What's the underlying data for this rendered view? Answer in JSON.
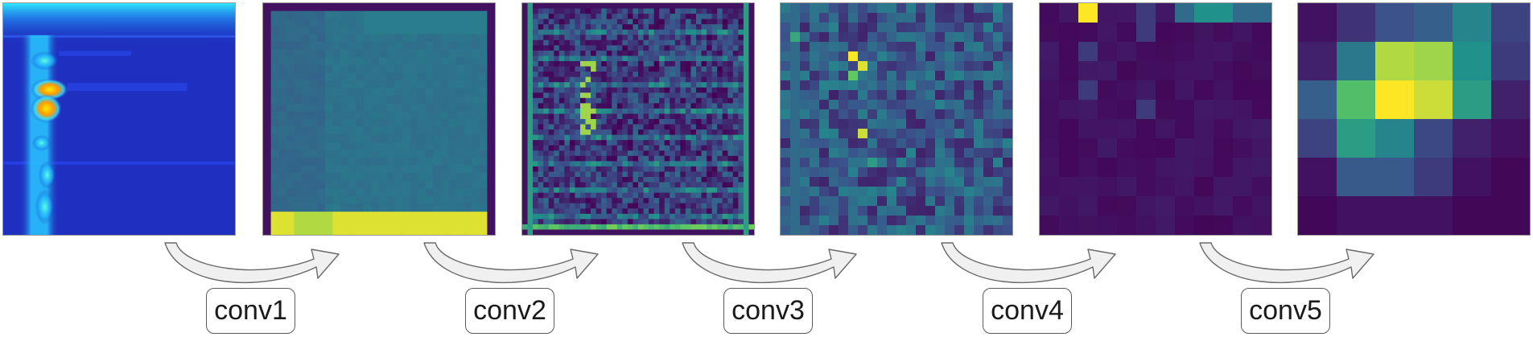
{
  "diagram": {
    "panels": [
      {
        "id": "input",
        "kind": "spectrogram"
      },
      {
        "id": "after-conv1",
        "kind": "feature-map",
        "grid": 30
      },
      {
        "id": "after-conv2",
        "kind": "feature-map",
        "grid": 44
      },
      {
        "id": "after-conv3",
        "kind": "feature-map",
        "grid": 24
      },
      {
        "id": "after-conv4",
        "kind": "feature-map",
        "grid": 12
      },
      {
        "id": "after-conv5",
        "kind": "feature-map",
        "grid": 6
      }
    ],
    "layers": [
      "conv1",
      "conv2",
      "conv3",
      "conv4",
      "conv5"
    ],
    "colors": {
      "viridis": [
        "#440154",
        "#3b528b",
        "#21918c",
        "#5ec962",
        "#fde725"
      ],
      "jet_dark": "#1a2fb8",
      "box_border": "#5a5a5a",
      "arrow_fill": "#f0f0f0",
      "arrow_stroke": "#6a6a6a"
    }
  }
}
